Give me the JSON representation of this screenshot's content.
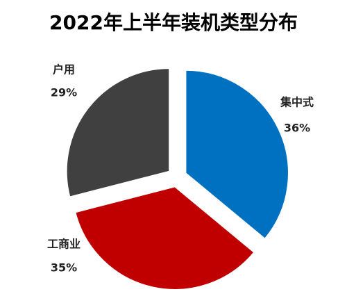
{
  "chart_data": {
    "type": "pie",
    "title": "2022年上半年装机类型分布",
    "categories": [
      "集中式",
      "工商业",
      "户用"
    ],
    "values": [
      36,
      35,
      29
    ],
    "value_labels": [
      "36%",
      "35%",
      "29%"
    ],
    "colors": [
      "#0070c0",
      "#c00000",
      "#404040"
    ]
  }
}
